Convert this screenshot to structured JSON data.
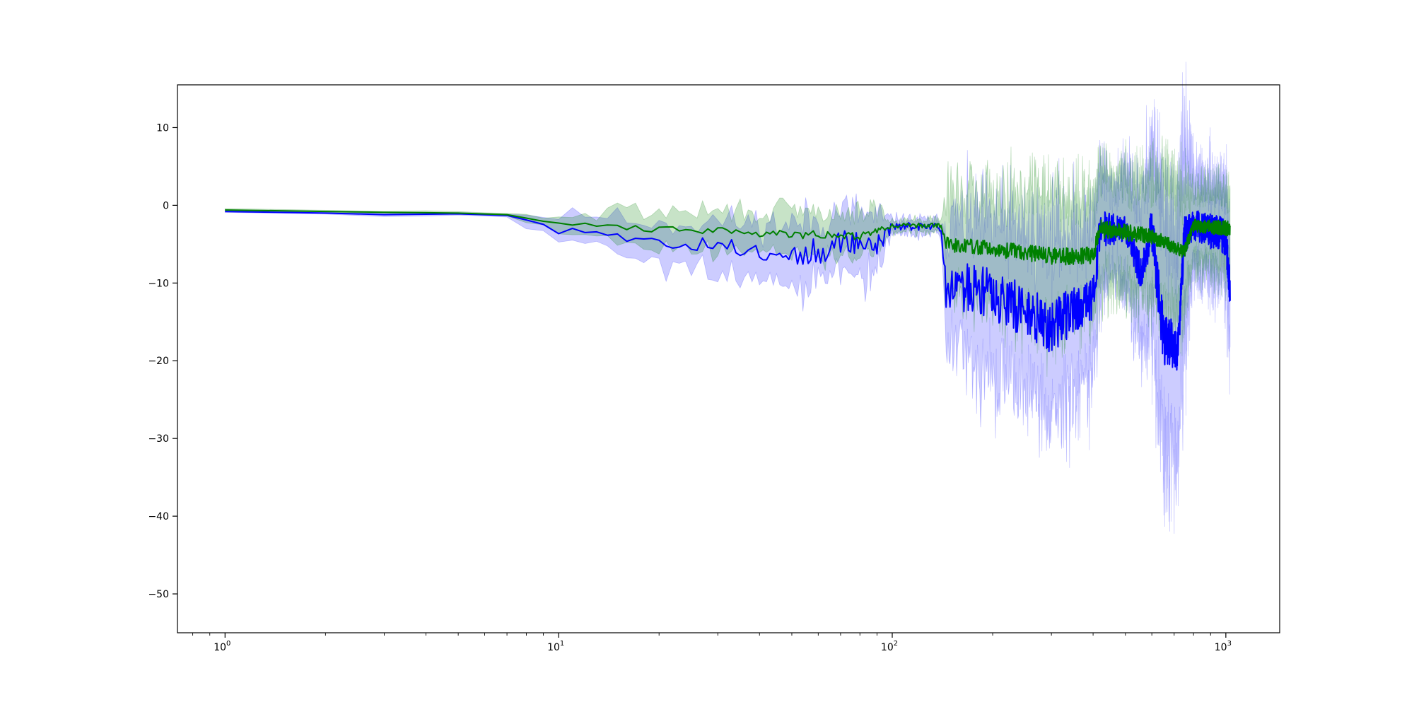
{
  "chart_data": {
    "type": "line",
    "title": "",
    "xlabel": "",
    "ylabel": "",
    "xscale": "log",
    "xlim": [
      0.72,
      1450
    ],
    "ylim": [
      -55,
      15.5
    ],
    "grid": false,
    "legend": "none",
    "x_ticks": [
      {
        "value": 1,
        "base": "10",
        "exp": "0"
      },
      {
        "value": 10,
        "base": "10",
        "exp": "1"
      },
      {
        "value": 100,
        "base": "10",
        "exp": "2"
      },
      {
        "value": 1000,
        "base": "10",
        "exp": "3"
      }
    ],
    "y_ticks": [
      {
        "value": 10,
        "label": "10"
      },
      {
        "value": 0,
        "label": "0"
      },
      {
        "value": -10,
        "label": "−10"
      },
      {
        "value": -20,
        "label": "−20"
      },
      {
        "value": -30,
        "label": "−30"
      },
      {
        "value": -40,
        "label": "−40"
      },
      {
        "value": -50,
        "label": "−50"
      }
    ],
    "series": [
      {
        "color": "#0000ff",
        "band_color": "#0000ff",
        "band_opacity": 0.2,
        "keypoints": [
          [
            1,
            -0.8
          ],
          [
            2,
            -1.0
          ],
          [
            3,
            -1.2
          ],
          [
            5,
            -1.1
          ],
          [
            7,
            -1.3
          ],
          [
            9,
            -2.4
          ],
          [
            10,
            -3.4
          ],
          [
            13,
            -2.9
          ],
          [
            15,
            -4.0
          ],
          [
            20,
            -4.8
          ],
          [
            25,
            -5.1
          ],
          [
            30,
            -5.2
          ],
          [
            40,
            -5.9
          ],
          [
            50,
            -6.3
          ],
          [
            60,
            -6.0
          ],
          [
            70,
            -4.5
          ],
          [
            90,
            -5.2
          ],
          [
            100,
            -2.7
          ],
          [
            140,
            -2.8
          ],
          [
            145,
            -10.0
          ],
          [
            200,
            -11.5
          ],
          [
            300,
            -15.5
          ],
          [
            400,
            -12.0
          ],
          [
            420,
            -3.2
          ],
          [
            500,
            -3.0
          ],
          [
            560,
            -9.0
          ],
          [
            600,
            -3.0
          ],
          [
            650,
            -17.0
          ],
          [
            720,
            -18.5
          ],
          [
            750,
            -4.0
          ],
          [
            800,
            -2.6
          ],
          [
            1000,
            -4.0
          ],
          [
            1030,
            -11.5
          ]
        ],
        "spread": [
          [
            1,
            0.2
          ],
          [
            7,
            0.3
          ],
          [
            10,
            2.6
          ],
          [
            20,
            4.2
          ],
          [
            40,
            5.5
          ],
          [
            60,
            6.5
          ],
          [
            90,
            6.0
          ],
          [
            100,
            1.5
          ],
          [
            140,
            1.5
          ],
          [
            145,
            12.0
          ],
          [
            300,
            18.0
          ],
          [
            420,
            14.0
          ],
          [
            450,
            8.0
          ],
          [
            560,
            14.0
          ],
          [
            650,
            25.0
          ],
          [
            750,
            22.0
          ],
          [
            800,
            10.0
          ],
          [
            1000,
            10.0
          ],
          [
            1030,
            12.0
          ]
        ],
        "noise": [
          [
            1,
            0
          ],
          [
            8,
            0
          ],
          [
            12,
            0.5
          ],
          [
            40,
            1.2
          ],
          [
            60,
            1.8
          ],
          [
            95,
            1.2
          ],
          [
            100,
            0.5
          ],
          [
            140,
            0.5
          ],
          [
            145,
            3.2
          ],
          [
            300,
            3.5
          ],
          [
            420,
            2.5
          ],
          [
            500,
            1.5
          ],
          [
            650,
            3.5
          ],
          [
            800,
            2.0
          ],
          [
            1030,
            2.5
          ]
        ],
        "seed": 11
      },
      {
        "color": "#008000",
        "band_color": "#008000",
        "band_opacity": 0.22,
        "keypoints": [
          [
            1,
            -0.6
          ],
          [
            3,
            -0.9
          ],
          [
            5,
            -1.0
          ],
          [
            7,
            -1.2
          ],
          [
            10,
            -2.4
          ],
          [
            20,
            -3.1
          ],
          [
            40,
            -3.5
          ],
          [
            60,
            -3.8
          ],
          [
            80,
            -4.0
          ],
          [
            100,
            -2.6
          ],
          [
            140,
            -2.6
          ],
          [
            145,
            -5.0
          ],
          [
            200,
            -5.5
          ],
          [
            300,
            -6.5
          ],
          [
            400,
            -6.5
          ],
          [
            420,
            -3.0
          ],
          [
            600,
            -4.0
          ],
          [
            750,
            -6.0
          ],
          [
            800,
            -2.6
          ],
          [
            1030,
            -3.0
          ]
        ],
        "spread": [
          [
            1,
            0.2
          ],
          [
            7,
            0.3
          ],
          [
            10,
            1.3
          ],
          [
            15,
            3.2
          ],
          [
            30,
            4.0
          ],
          [
            60,
            4.5
          ],
          [
            90,
            4.3
          ],
          [
            100,
            1.2
          ],
          [
            140,
            1.2
          ],
          [
            145,
            10.0
          ],
          [
            300,
            13.5
          ],
          [
            420,
            11.0
          ],
          [
            560,
            11.0
          ],
          [
            650,
            14.0
          ],
          [
            750,
            12.0
          ],
          [
            800,
            7.0
          ],
          [
            1030,
            8.0
          ]
        ],
        "noise": [
          [
            1,
            0
          ],
          [
            8,
            0
          ],
          [
            12,
            0.3
          ],
          [
            60,
            0.6
          ],
          [
            100,
            0.3
          ],
          [
            140,
            0.3
          ],
          [
            145,
            1.0
          ],
          [
            420,
            1.2
          ],
          [
            800,
            0.8
          ],
          [
            1030,
            1.0
          ]
        ],
        "seed": 29
      }
    ]
  }
}
